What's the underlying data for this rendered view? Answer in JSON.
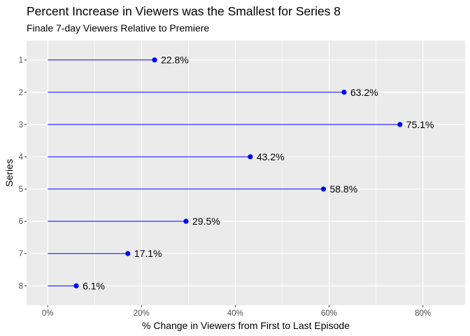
{
  "chart_data": {
    "type": "lollipop",
    "title": "Percent Increase in Viewers was the Smallest for Series 8",
    "subtitle": "Finale 7-day Viewers Relative to Premiere",
    "xlabel": "% Change in Viewers from First to Last Episode",
    "ylabel": "Series",
    "categories": [
      "1",
      "2",
      "3",
      "4",
      "5",
      "6",
      "7",
      "8"
    ],
    "values": [
      22.8,
      63.2,
      75.1,
      43.2,
      58.8,
      29.5,
      17.1,
      6.1
    ],
    "data_labels": [
      "22.8%",
      "63.2%",
      "75.1%",
      "43.2%",
      "58.8%",
      "29.5%",
      "17.1%",
      "6.1%"
    ],
    "xticks": [
      0,
      20,
      40,
      60,
      80
    ],
    "xtick_labels": [
      "0%",
      "20%",
      "40%",
      "60%",
      "80%"
    ],
    "xlim": [
      -4.5,
      89
    ],
    "grid": true,
    "colors": {
      "series": "#0000ff",
      "panel": "#ebebeb",
      "gridline": "#ffffff"
    }
  }
}
